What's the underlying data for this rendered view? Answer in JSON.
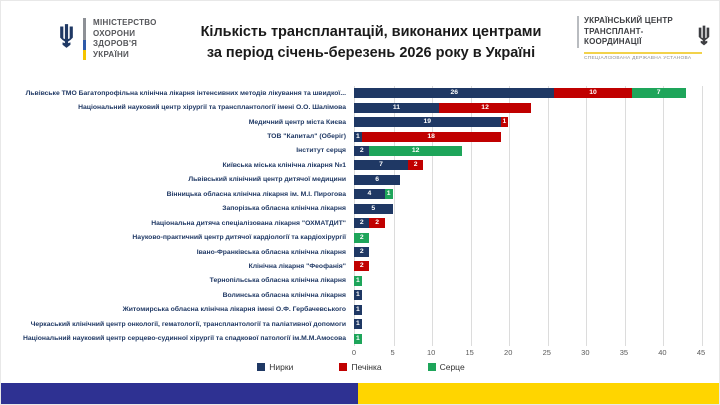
{
  "header": {
    "moz_logo_lines": [
      "МІНІСТЕРСТВО",
      "ОХОРОНИ",
      "ЗДОРОВ'Я",
      "УКРАЇНИ"
    ],
    "title_line1": "Кількість трансплантацій, виконаних центрами",
    "title_line2": "за період січень-березень 2026 року в Україні",
    "uctc_logo_lines": [
      "УКРАЇНСЬКИЙ ЦЕНТР",
      "ТРАНСПЛАНТ-",
      "КООРДИНАЦІЇ"
    ],
    "uctc_caption": "СПЕЦІАЛІЗОВАНА ДЕРЖАВНА УСТАНОВА"
  },
  "chart_data": {
    "type": "bar",
    "orientation": "horizontal",
    "stacked": true,
    "categories": [
      "Львівське ТМО Багатопрофільна клінічна лікарня інтенсивних методів лікування та швидкої...",
      "Національний науковий центр хірургії та трансплантології імені О.О. Шалімова",
      "Медичний центр міста Києва",
      "ТОВ \"Капитал\" (Оберіг)",
      "Інститут серця",
      "Київська міська клінічна лікарня №1",
      "Львівський клінічний центр дитячої медицини",
      "Вінницька обласна клінічна лікарня ім. М.І. Пирогова",
      "Запорізька обласна клінічна лікарня",
      "Національна дитяча спеціалізована лікарня \"ОХМАТДИТ\"",
      "Науково-практичний центр дитячої кардіології та кардіохірургії",
      "Івано-Франківська обласна клінічна лікарня",
      "Клінічна лікарня \"Феофанія\"",
      "Тернопільська обласна клінічна лікарня",
      "Волинська обласна клінічна лікарня",
      "Житомирська обласна клінічна лікарня імені О.Ф. Гербачевського",
      "Черкаський клінічний центр онкології, гематології, трансплантології та паліативної допомоги",
      "Національний науковий центр серцево-судинної хірургії та спадкової патології ім.М.М.Амосова"
    ],
    "series": [
      {
        "name": "Нирки",
        "color": "#1F3864",
        "values": [
          26,
          11,
          19,
          1,
          2,
          7,
          6,
          4,
          5,
          2,
          0,
          2,
          0,
          0,
          1,
          1,
          1,
          0
        ]
      },
      {
        "name": "Печінка",
        "color": "#C00000",
        "values": [
          10,
          12,
          1,
          18,
          0,
          2,
          0,
          0,
          0,
          2,
          0,
          0,
          2,
          0,
          0,
          0,
          0,
          0
        ]
      },
      {
        "name": "Серце",
        "color": "#1EA55A",
        "values": [
          7,
          0,
          0,
          0,
          12,
          0,
          0,
          1,
          0,
          0,
          2,
          0,
          0,
          1,
          0,
          0,
          0,
          1
        ]
      }
    ],
    "x_ticks": [
      0,
      5,
      10,
      15,
      20,
      25,
      30,
      35,
      40,
      45
    ],
    "xlim": [
      0,
      45
    ],
    "grid": true,
    "legend_position": "bottom",
    "data_labels": true
  },
  "footer": {
    "flag_blue": "#2E3192",
    "flag_yellow": "#FFD500"
  }
}
